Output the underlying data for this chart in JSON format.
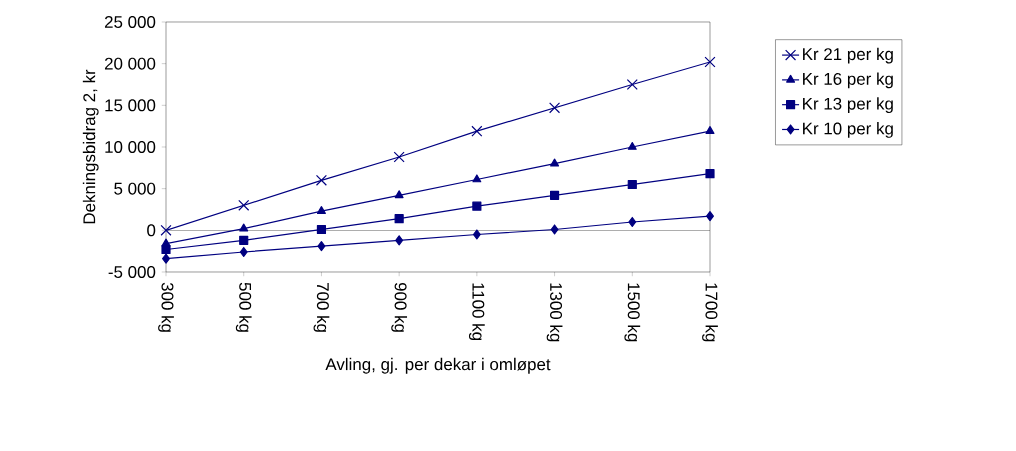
{
  "chart_data": {
    "type": "line",
    "xlabel": "Avling, gj. per dekar i omløpet",
    "ylabel": "Dekningsbidrag 2, kr",
    "categories": [
      "300 kg",
      "500 kg",
      "700 kg",
      "900 kg",
      "1100 kg",
      "1300 kg",
      "1500 kg",
      "1700 kg"
    ],
    "series": [
      {
        "name": "Kr 21 per kg",
        "color": "#000080",
        "marker": "cross",
        "values": [
          0,
          3000,
          6000,
          8800,
          11900,
          14700,
          17500,
          20200
        ]
      },
      {
        "name": "Kr 16 per kg",
        "color": "#000080",
        "marker": "triangle",
        "values": [
          -1600,
          200,
          2300,
          4200,
          6100,
          8000,
          10000,
          11900
        ]
      },
      {
        "name": "Kr 13 per kg",
        "color": "#000080",
        "marker": "square",
        "values": [
          -2300,
          -1200,
          100,
          1400,
          2900,
          4200,
          5500,
          6800
        ]
      },
      {
        "name": "Kr 10 per kg",
        "color": "#000080",
        "marker": "diamond",
        "values": [
          -3400,
          -2600,
          -1900,
          -1200,
          -500,
          100,
          1000,
          1700
        ]
      }
    ],
    "ylim": [
      -5000,
      25000
    ],
    "yticks": [
      {
        "value": -5000,
        "label": "-5 000"
      },
      {
        "value": 0,
        "label": "0"
      },
      {
        "value": 5000,
        "label": "5 000"
      },
      {
        "value": 10000,
        "label": "10 000"
      },
      {
        "value": 15000,
        "label": "15 000"
      },
      {
        "value": 20000,
        "label": "20 000"
      },
      {
        "value": 25000,
        "label": "25 000"
      }
    ],
    "ref_lines": [
      {
        "axis": "y",
        "value": 0,
        "color": "#000000"
      }
    ],
    "legend": "right",
    "line_style": "solid"
  }
}
